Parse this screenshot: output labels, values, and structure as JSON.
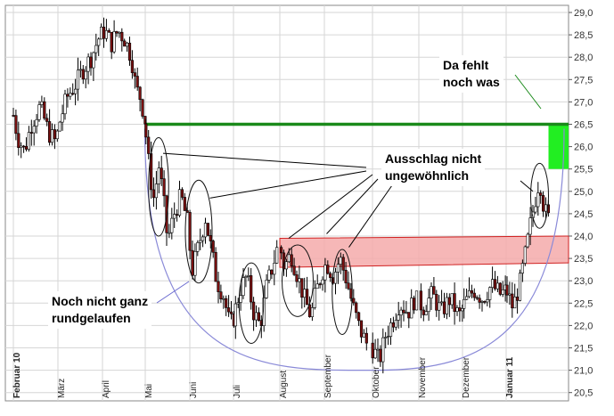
{
  "chart_data": {
    "type": "candlestick",
    "title": "",
    "xlabel": "",
    "ylabel": "",
    "ylim": [
      20.5,
      29.0
    ],
    "grid": true,
    "y_ticks": [
      "29,0",
      "28,5",
      "28,0",
      "27,5",
      "27,0",
      "26,5",
      "26,0",
      "25,5",
      "25,0",
      "24,5",
      "24,0",
      "23,5",
      "23,0",
      "22,5",
      "22,0",
      "21,5",
      "21,0",
      "20,5"
    ],
    "x_ticks": [
      {
        "label": "Februar 10",
        "bold": true
      },
      {
        "label": "März",
        "bold": false
      },
      {
        "label": "April",
        "bold": false
      },
      {
        "label": "Mai",
        "bold": false
      },
      {
        "label": "Juni",
        "bold": false
      },
      {
        "label": "Juli",
        "bold": false
      },
      {
        "label": "August",
        "bold": false
      },
      {
        "label": "September",
        "bold": false
      },
      {
        "label": "Oktober",
        "bold": false
      },
      {
        "label": "November",
        "bold": false
      },
      {
        "label": "Dezember",
        "bold": false
      },
      {
        "label": "Januar 11",
        "bold": true
      }
    ],
    "price_path": [
      [
        0.0,
        26.7
      ],
      [
        0.1,
        26.2
      ],
      [
        0.25,
        25.9
      ],
      [
        0.4,
        26.5
      ],
      [
        0.6,
        26.9
      ],
      [
        0.8,
        26.3
      ],
      [
        0.95,
        26.1
      ],
      [
        1.05,
        26.6
      ],
      [
        1.2,
        27.1
      ],
      [
        1.4,
        27.4
      ],
      [
        1.55,
        27.7
      ],
      [
        1.75,
        28.0
      ],
      [
        1.9,
        28.4
      ],
      [
        2.05,
        28.6
      ],
      [
        2.2,
        28.3
      ],
      [
        2.35,
        28.6
      ],
      [
        2.5,
        28.4
      ],
      [
        2.65,
        28.0
      ],
      [
        2.75,
        27.3
      ],
      [
        2.85,
        27.1
      ],
      [
        3.0,
        26.4
      ],
      [
        3.1,
        25.4
      ],
      [
        3.2,
        24.8
      ],
      [
        3.3,
        25.6
      ],
      [
        3.4,
        24.9
      ],
      [
        3.5,
        23.9
      ],
      [
        3.65,
        24.5
      ],
      [
        3.8,
        24.9
      ],
      [
        3.95,
        24.3
      ],
      [
        4.05,
        23.2
      ],
      [
        4.2,
        23.8
      ],
      [
        4.35,
        24.4
      ],
      [
        4.5,
        23.6
      ],
      [
        4.6,
        23.0
      ],
      [
        4.75,
        22.7
      ],
      [
        4.9,
        22.0
      ],
      [
        5.0,
        22.2
      ],
      [
        5.15,
        22.8
      ],
      [
        5.3,
        23.1
      ],
      [
        5.45,
        22.3
      ],
      [
        5.6,
        22.0
      ],
      [
        5.75,
        22.9
      ],
      [
        5.9,
        23.4
      ],
      [
        6.0,
        23.8
      ],
      [
        6.1,
        23.3
      ],
      [
        6.25,
        23.6
      ],
      [
        6.4,
        23.1
      ],
      [
        6.55,
        22.6
      ],
      [
        6.7,
        22.2
      ],
      [
        6.8,
        22.7
      ],
      [
        6.95,
        23.2
      ],
      [
        7.05,
        23.4
      ],
      [
        7.2,
        23.1
      ],
      [
        7.35,
        23.5
      ],
      [
        7.5,
        23.0
      ],
      [
        7.65,
        22.4
      ],
      [
        7.8,
        21.9
      ],
      [
        7.95,
        21.6
      ],
      [
        8.05,
        21.4
      ],
      [
        8.15,
        21.2
      ],
      [
        8.3,
        21.8
      ],
      [
        8.45,
        22.1
      ],
      [
        8.6,
        22.5
      ],
      [
        8.8,
        22.3
      ],
      [
        8.95,
        22.6
      ],
      [
        9.1,
        22.4
      ],
      [
        9.3,
        22.7
      ],
      [
        9.5,
        22.3
      ],
      [
        9.7,
        22.6
      ],
      [
        9.9,
        22.2
      ],
      [
        10.05,
        22.5
      ],
      [
        10.25,
        22.8
      ],
      [
        10.45,
        22.6
      ],
      [
        10.65,
        22.9
      ],
      [
        10.85,
        22.7
      ],
      [
        11.0,
        22.8
      ],
      [
        11.15,
        22.4
      ],
      [
        11.3,
        22.9
      ],
      [
        11.45,
        23.7
      ],
      [
        11.55,
        24.3
      ],
      [
        11.65,
        24.8
      ],
      [
        11.75,
        25.3
      ],
      [
        11.85,
        24.6
      ],
      [
        11.95,
        24.4
      ]
    ],
    "resistance_line": {
      "value": 26.5,
      "from_month": 2.95,
      "to_month": 12.4,
      "color": "#1a8a1a"
    },
    "target_zone": {
      "from_month": 11.95,
      "to_month": 12.4,
      "y_low": 25.5,
      "y_high": 26.5,
      "color": "#22ee22"
    },
    "channel": {
      "x0": 6.0,
      "x1": 12.4,
      "top0": 23.95,
      "top1": 24.0,
      "bot0": 23.3,
      "bot1": 23.4,
      "color": "#f4aaaa"
    },
    "rounding_bottom": {
      "start_month": 2.95,
      "start_value": 26.4,
      "bottom_month": 8.1,
      "bottom_value": 21.0,
      "end_month": 12.3,
      "end_value": 26.4,
      "color": "#8a8ad8"
    },
    "spike_ellipses": [
      {
        "month": 3.3,
        "value": 25.1,
        "width_months": 0.45,
        "height": 2.2
      },
      {
        "month": 4.2,
        "value": 24.1,
        "width_months": 0.6,
        "height": 2.3
      },
      {
        "month": 5.4,
        "value": 22.5,
        "width_months": 0.55,
        "height": 1.8
      },
      {
        "month": 6.4,
        "value": 23.0,
        "width_months": 0.7,
        "height": 1.6
      },
      {
        "month": 7.4,
        "value": 22.75,
        "width_months": 0.45,
        "height": 1.9
      },
      {
        "month": 11.75,
        "value": 24.9,
        "width_months": 0.4,
        "height": 1.45
      }
    ],
    "annotations": [
      {
        "id": "missing",
        "lines": [
          "Da fehlt",
          "noch was"
        ]
      },
      {
        "id": "spikes",
        "lines": [
          "Ausschlag nicht",
          "ungewöhnlich"
        ]
      },
      {
        "id": "rounding",
        "lines": [
          "Noch nicht ganz",
          "rundgelaufen"
        ]
      }
    ],
    "colors": {
      "candle_up": "#ffffff",
      "candle_down": "#7a1010",
      "wick": "#000000",
      "grid": "#d6d6d6",
      "background": "#ffffff",
      "frame": "#888888"
    }
  }
}
